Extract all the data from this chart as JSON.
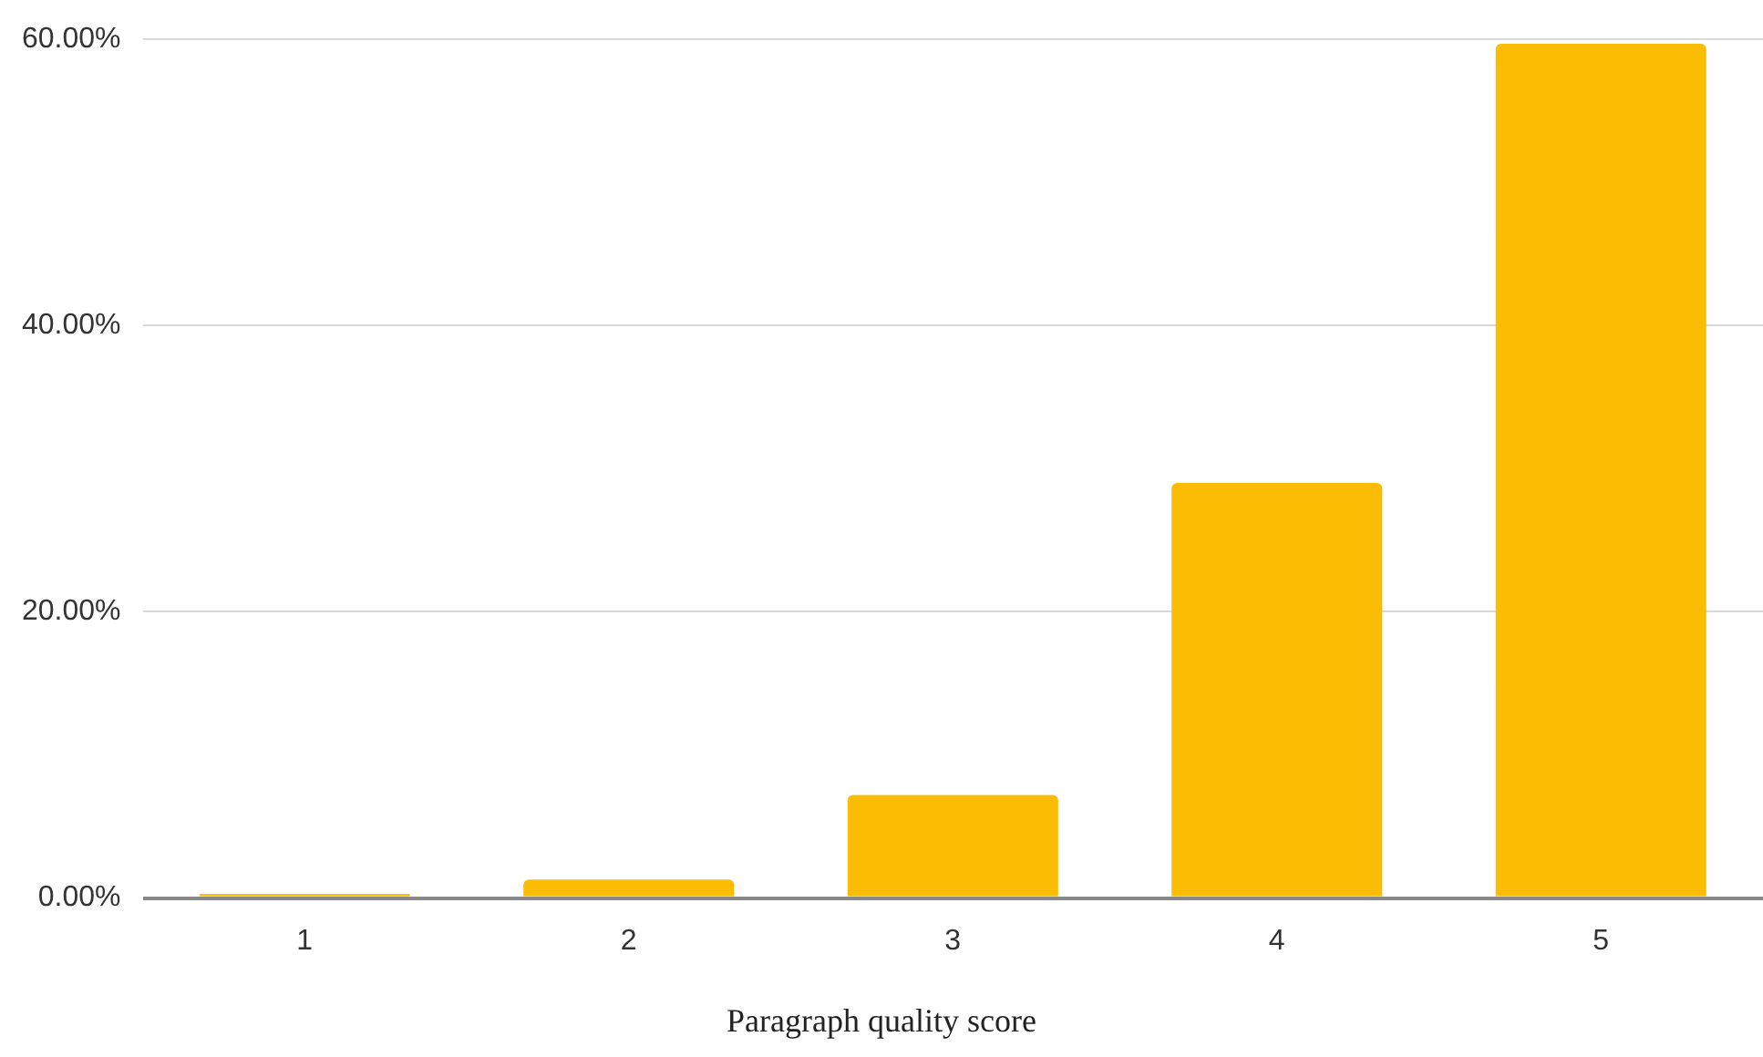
{
  "chart_data": {
    "type": "bar",
    "xlabel": "Paragraph quality score",
    "categories": [
      "1",
      "2",
      "3",
      "4",
      "5"
    ],
    "values": [
      0.3,
      1.3,
      7.2,
      29.0,
      59.7
    ],
    "color": "#fbbc04",
    "ylim": [
      0,
      60
    ],
    "yticks": [
      {
        "value": 0,
        "label": "0.00%"
      },
      {
        "value": 20,
        "label": "20.00%"
      },
      {
        "value": 40,
        "label": "40.00%"
      },
      {
        "value": 60,
        "label": "60.00%"
      }
    ],
    "grid": "y",
    "legend": false
  }
}
